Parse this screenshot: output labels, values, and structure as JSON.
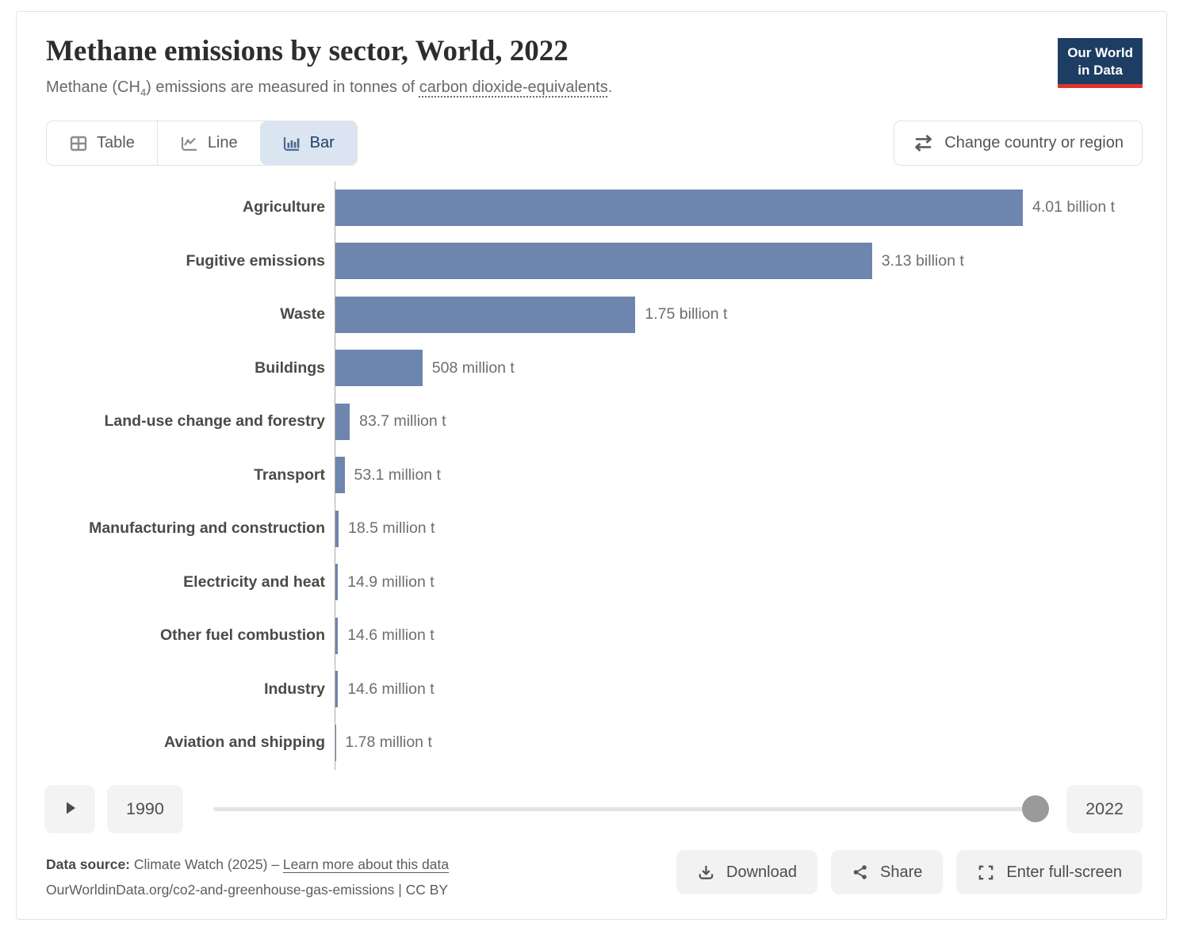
{
  "header": {
    "title": "Methane emissions by sector, World, 2022",
    "subtitle": {
      "pre": "Methane (CH",
      "sub": "4",
      "mid": ") emissions are measured in tonnes of ",
      "link": "carbon dioxide-equivalents",
      "post": "."
    },
    "logo": {
      "line1": "Our World",
      "line2": "in Data"
    }
  },
  "controls": {
    "tabs": [
      {
        "label": "Table",
        "icon": "table-icon",
        "selected": false
      },
      {
        "label": "Line",
        "icon": "line-chart-icon",
        "selected": false
      },
      {
        "label": "Bar",
        "icon": "bar-chart-icon",
        "selected": true
      }
    ],
    "change_entity_label": "Change country or region",
    "change_entity_icon": "swap-arrows-icon"
  },
  "chart_data": {
    "type": "bar",
    "orientation": "horizontal",
    "title": "Methane emissions by sector, World, 2022",
    "unit": "tonnes of carbon dioxide-equivalents",
    "categories": [
      "Agriculture",
      "Fugitive emissions",
      "Waste",
      "Buildings",
      "Land-use change and forestry",
      "Transport",
      "Manufacturing and construction",
      "Electricity and heat",
      "Other fuel combustion",
      "Industry",
      "Aviation and shipping"
    ],
    "values": [
      4010000000,
      3130000000,
      1750000000,
      508000000,
      83700000,
      53100000,
      18500000,
      14900000,
      14600000,
      14600000,
      1780000
    ],
    "value_labels": [
      "4.01 billion t",
      "3.13 billion t",
      "1.75 billion t",
      "508 million t",
      "83.7 million t",
      "53.1 million t",
      "18.5 million t",
      "14.9 million t",
      "14.6 million t",
      "14.6 million t",
      "1.78 million t"
    ],
    "xlim": [
      0,
      4010000000
    ],
    "bar_color": "#6e86ad",
    "grid": false,
    "legend": "none"
  },
  "timeline": {
    "play_icon": "play-icon",
    "start_year": "1990",
    "end_year": "2022",
    "current_year": "2022"
  },
  "footer": {
    "source_label": "Data source:",
    "source_text": " Climate Watch (2025) – ",
    "source_link": "Learn more about this data",
    "citation": "OurWorldinData.org/co2-and-greenhouse-gas-emissions | CC BY",
    "buttons": [
      {
        "label": "Download",
        "icon": "download-icon"
      },
      {
        "label": "Share",
        "icon": "share-icon"
      },
      {
        "label": "Enter full-screen",
        "icon": "fullscreen-icon"
      }
    ]
  },
  "colors": {
    "bar": "#6e86ad",
    "logo_navy": "#1d3d63",
    "logo_red": "#dc352c",
    "selected_tab_bg": "#dbe5f1",
    "selected_tab_text": "#1f3e64"
  }
}
